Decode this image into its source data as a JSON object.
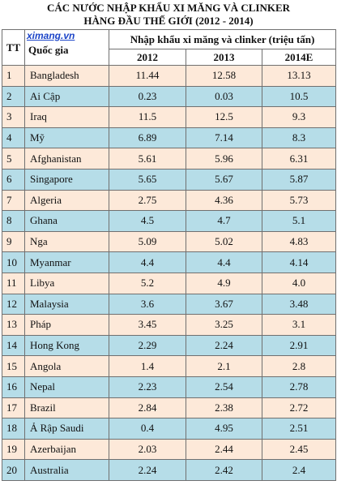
{
  "title": {
    "line1": "CÁC NƯỚC NHẬP KHẨU XI MĂNG VÀ CLINKER",
    "line2": "HÀNG ĐẦU THẾ GIỚI (2012 - 2014)"
  },
  "brand": "ximang.vn",
  "headers": {
    "tt": "TT",
    "country": "Quốc gia",
    "group": "Nhập khẩu xi măng và clinker (triệu tấn)",
    "years": [
      "2012",
      "2013",
      "2014E"
    ]
  },
  "rows": [
    {
      "tt": "1",
      "country": "Bangladesh",
      "y2012": "11.44",
      "y2013": "12.58",
      "y2014": "13.13"
    },
    {
      "tt": "2",
      "country": "Ai Cập",
      "y2012": "0.23",
      "y2013": "0.03",
      "y2014": "10.5"
    },
    {
      "tt": "3",
      "country": "Iraq",
      "y2012": "11.5",
      "y2013": "12.5",
      "y2014": "9.3"
    },
    {
      "tt": "4",
      "country": "Mỹ",
      "y2012": "6.89",
      "y2013": "7.14",
      "y2014": "8.3"
    },
    {
      "tt": "5",
      "country": "Afghanistan",
      "y2012": "5.61",
      "y2013": "5.96",
      "y2014": "6.31"
    },
    {
      "tt": "6",
      "country": "Singapore",
      "y2012": "5.65",
      "y2013": "5.67",
      "y2014": "5.87"
    },
    {
      "tt": "7",
      "country": "Algeria",
      "y2012": "2.75",
      "y2013": "4.36",
      "y2014": "5.73"
    },
    {
      "tt": "8",
      "country": "Ghana",
      "y2012": "4.5",
      "y2013": "4.7",
      "y2014": "5.1"
    },
    {
      "tt": "9",
      "country": "Nga",
      "y2012": "5.09",
      "y2013": "5.02",
      "y2014": "4.83"
    },
    {
      "tt": "10",
      "country": "Myanmar",
      "y2012": "4.4",
      "y2013": "4.4",
      "y2014": "4.14"
    },
    {
      "tt": "11",
      "country": "Libya",
      "y2012": "5.2",
      "y2013": "4.9",
      "y2014": "4.0"
    },
    {
      "tt": "12",
      "country": "Malaysia",
      "y2012": "3.6",
      "y2013": "3.67",
      "y2014": "3.48"
    },
    {
      "tt": "13",
      "country": "Pháp",
      "y2012": "3.45",
      "y2013": "3.25",
      "y2014": "3.1"
    },
    {
      "tt": "14",
      "country": "Hong Kong",
      "y2012": "2.29",
      "y2013": "2.24",
      "y2014": "2.91"
    },
    {
      "tt": "15",
      "country": "Angola",
      "y2012": "1.4",
      "y2013": "2.1",
      "y2014": "2.8"
    },
    {
      "tt": "16",
      "country": "Nepal",
      "y2012": "2.23",
      "y2013": "2.54",
      "y2014": "2.78"
    },
    {
      "tt": "17",
      "country": "Brazil",
      "y2012": "2.84",
      "y2013": "2.38",
      "y2014": "2.72"
    },
    {
      "tt": "18",
      "country": "Ả Rập Saudi",
      "y2012": "0.4",
      "y2013": "4.95",
      "y2014": "2.51"
    },
    {
      "tt": "19",
      "country": "Azerbaijan",
      "y2012": "2.03",
      "y2013": "2.44",
      "y2014": "2.45"
    },
    {
      "tt": "20",
      "country": "Australia",
      "y2012": "2.24",
      "y2013": "2.42",
      "y2014": "2.4"
    }
  ],
  "colors": {
    "odd_row": "#fde9d9",
    "even_row": "#b6dde8",
    "brand": "#1b44c8"
  }
}
